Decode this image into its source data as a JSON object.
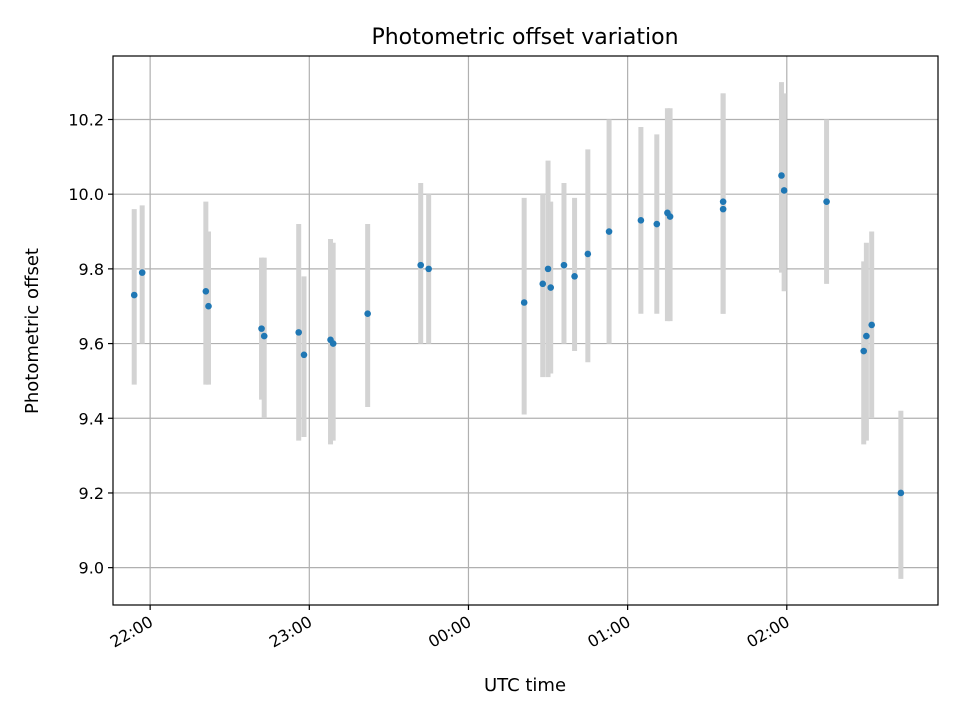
{
  "chart_data": {
    "type": "scatter",
    "title": "Photometric offset variation",
    "xlabel": "UTC time",
    "ylabel": "Photometric offset",
    "x_unit": "UTC time",
    "xlim": [
      "21:46",
      "02:57"
    ],
    "ylim": [
      8.9,
      10.37
    ],
    "x_ticks": [
      "22:00",
      "23:00",
      "00:00",
      "01:00",
      "02:00"
    ],
    "y_ticks": [
      "9.0",
      "9.2",
      "9.4",
      "9.6",
      "9.8",
      "10.0",
      "10.2"
    ],
    "grid": true,
    "colors": {
      "point": "#1f77b4",
      "errorbar": "#d3d3d3",
      "grid": "#b0b0b0"
    },
    "points": [
      {
        "x": "21:54",
        "y": 9.73,
        "low": 9.49,
        "high": 9.96
      },
      {
        "x": "21:57",
        "y": 9.79,
        "low": 9.6,
        "high": 9.97
      },
      {
        "x": "22:21",
        "y": 9.74,
        "low": 9.49,
        "high": 9.98
      },
      {
        "x": "22:22",
        "y": 9.7,
        "low": 9.49,
        "high": 9.9
      },
      {
        "x": "22:42",
        "y": 9.64,
        "low": 9.45,
        "high": 9.83
      },
      {
        "x": "22:43",
        "y": 9.62,
        "low": 9.4,
        "high": 9.83
      },
      {
        "x": "22:56",
        "y": 9.63,
        "low": 9.34,
        "high": 9.92
      },
      {
        "x": "22:58",
        "y": 9.57,
        "low": 9.35,
        "high": 9.78
      },
      {
        "x": "23:08",
        "y": 9.61,
        "low": 9.33,
        "high": 9.88
      },
      {
        "x": "23:09",
        "y": 9.6,
        "low": 9.34,
        "high": 9.87
      },
      {
        "x": "23:22",
        "y": 9.68,
        "low": 9.43,
        "high": 9.92
      },
      {
        "x": "23:42",
        "y": 9.81,
        "low": 9.6,
        "high": 10.03
      },
      {
        "x": "23:45",
        "y": 9.8,
        "low": 9.6,
        "high": 10.0
      },
      {
        "x": "00:21",
        "y": 9.71,
        "low": 9.41,
        "high": 9.99
      },
      {
        "x": "00:28",
        "y": 9.76,
        "low": 9.51,
        "high": 10.0
      },
      {
        "x": "00:30",
        "y": 9.8,
        "low": 9.51,
        "high": 10.09
      },
      {
        "x": "00:31",
        "y": 9.75,
        "low": 9.52,
        "high": 9.98
      },
      {
        "x": "00:36",
        "y": 9.81,
        "low": 9.6,
        "high": 10.03
      },
      {
        "x": "00:40",
        "y": 9.78,
        "low": 9.58,
        "high": 9.99
      },
      {
        "x": "00:45",
        "y": 9.84,
        "low": 9.55,
        "high": 10.12
      },
      {
        "x": "00:53",
        "y": 9.9,
        "low": 9.6,
        "high": 10.2
      },
      {
        "x": "01:05",
        "y": 9.93,
        "low": 9.68,
        "high": 10.18
      },
      {
        "x": "01:11",
        "y": 9.92,
        "low": 9.68,
        "high": 10.16
      },
      {
        "x": "01:15",
        "y": 9.95,
        "low": 9.66,
        "high": 10.23
      },
      {
        "x": "01:16",
        "y": 9.94,
        "low": 9.66,
        "high": 10.23
      },
      {
        "x": "01:36",
        "y": 9.98,
        "low": 9.68,
        "high": 10.27
      },
      {
        "x": "01:36",
        "y": 9.96,
        "low": 9.68,
        "high": 10.27
      },
      {
        "x": "01:58",
        "y": 10.05,
        "low": 9.79,
        "high": 10.3
      },
      {
        "x": "01:59",
        "y": 10.01,
        "low": 9.74,
        "high": 10.27
      },
      {
        "x": "02:15",
        "y": 9.98,
        "low": 9.76,
        "high": 10.2
      },
      {
        "x": "02:29",
        "y": 9.58,
        "low": 9.33,
        "high": 9.82
      },
      {
        "x": "02:30",
        "y": 9.62,
        "low": 9.34,
        "high": 9.87
      },
      {
        "x": "02:32",
        "y": 9.65,
        "low": 9.4,
        "high": 9.9
      },
      {
        "x": "02:43",
        "y": 9.2,
        "low": 8.97,
        "high": 9.42
      }
    ]
  }
}
